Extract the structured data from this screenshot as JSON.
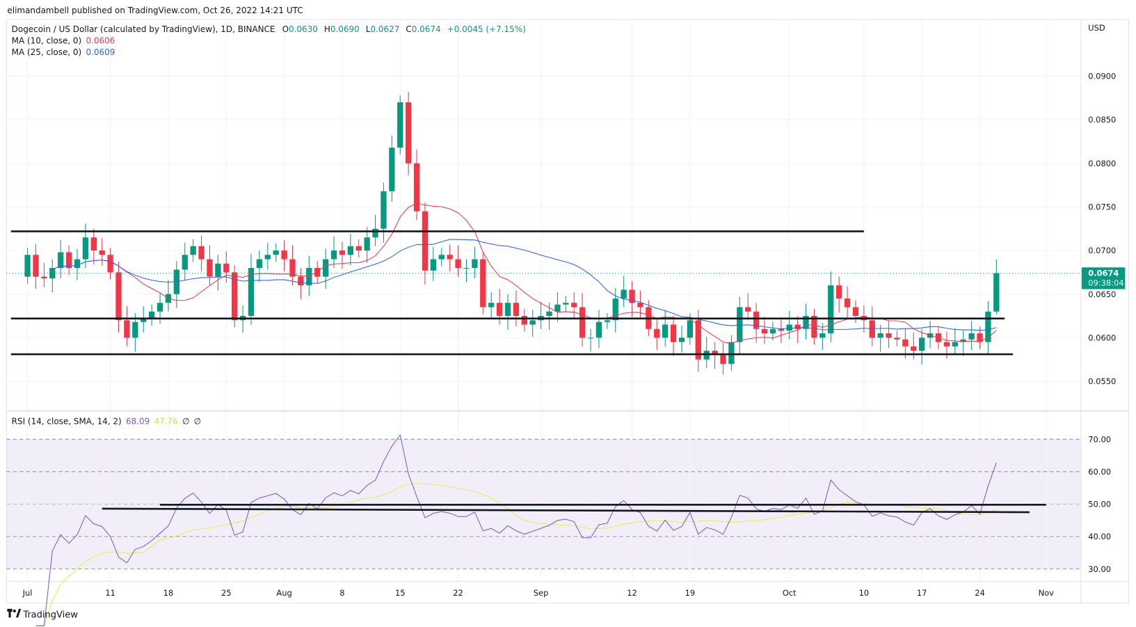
{
  "publisher_line": "elimandambell published on TradingView.com, Oct 26, 2022 14:21 UTC",
  "legend": {
    "symbol": "Dogecoin / US Dollar (calculated by TradingView), 1D, BINANCE",
    "o_label": "O",
    "o": "0.0630",
    "h_label": "H",
    "h": "0.0690",
    "l_label": "L",
    "l": "0.0627",
    "c_label": "C",
    "c": "0.0674",
    "change": "+0.0045 (+7.15%)",
    "ma10_label": "MA (10, close, 0)",
    "ma10_value": "0.0606",
    "ma25_label": "MA (25, close, 0)",
    "ma25_value": "0.0609",
    "rsi_label": "RSI (14, close, SMA, 14, 2)",
    "rsi_value": "68.09",
    "rsi_sma_value": "47.76",
    "rsi_extra1": "∅",
    "rsi_extra2": "∅"
  },
  "currency": "USD",
  "last_price": {
    "price": "0.0674",
    "countdown": "09:38:04",
    "value": 0.0674
  },
  "footer_logo": "TradingView",
  "colors": {
    "up": "#089981",
    "down": "#f23645",
    "ma10": "#f23645",
    "ma25": "#2962ff",
    "rsi": "#7e57c2",
    "rsi_sma": "#e8ec52"
  },
  "chart_data": {
    "type": "candlestick",
    "title": "Dogecoin / US Dollar, 1D, BINANCE",
    "start_date": "2022-07-01",
    "closes": [
      0.0695,
      0.067,
      0.0668,
      0.068,
      0.0698,
      0.068,
      0.069,
      0.0715,
      0.07,
      0.0695,
      0.0675,
      0.062,
      0.06,
      0.0618,
      0.0622,
      0.063,
      0.064,
      0.065,
      0.0678,
      0.0695,
      0.0705,
      0.069,
      0.067,
      0.0685,
      0.0675,
      0.062,
      0.0625,
      0.068,
      0.069,
      0.0695,
      0.07,
      0.069,
      0.067,
      0.066,
      0.068,
      0.067,
      0.069,
      0.07,
      0.0695,
      0.0705,
      0.07,
      0.0715,
      0.0725,
      0.0768,
      0.0818,
      0.087,
      0.08,
      0.0745,
      0.0677,
      0.069,
      0.0695,
      0.069,
      0.068,
      0.068,
      0.069,
      0.0635,
      0.064,
      0.0625,
      0.064,
      0.0625,
      0.0615,
      0.062,
      0.0625,
      0.063,
      0.0638,
      0.064,
      0.0635,
      0.06,
      0.06,
      0.0618,
      0.062,
      0.0645,
      0.0655,
      0.064,
      0.0635,
      0.061,
      0.06,
      0.0615,
      0.0595,
      0.06,
      0.062,
      0.0575,
      0.0585,
      0.058,
      0.057,
      0.0595,
      0.0635,
      0.063,
      0.061,
      0.0605,
      0.061,
      0.0608,
      0.0615,
      0.061,
      0.0625,
      0.06,
      0.0605,
      0.066,
      0.0645,
      0.0635,
      0.0625,
      0.062,
      0.06,
      0.0605,
      0.06,
      0.0598,
      0.059,
      0.0585,
      0.06,
      0.0605,
      0.0595,
      0.059,
      0.0595,
      0.0598,
      0.0605,
      0.0595,
      0.063,
      0.0674
    ],
    "last_candle": {
      "open": 0.063,
      "high": 0.069,
      "low": 0.0627,
      "close": 0.0674
    },
    "price_ticks": [
      "0.0550",
      "0.0600",
      "0.0650",
      "0.0700",
      "0.0750",
      "0.0800",
      "0.0850",
      "0.0900"
    ],
    "rsi_ticks": [
      "30.00",
      "40.00",
      "50.00",
      "60.00",
      "70.00"
    ],
    "rsi_band": [
      30,
      70
    ],
    "x_ticks": [
      {
        "label": "Jul",
        "day": 0
      },
      {
        "label": "11",
        "day": 10
      },
      {
        "label": "18",
        "day": 17
      },
      {
        "label": "25",
        "day": 24
      },
      {
        "label": "Aug",
        "day": 31
      },
      {
        "label": "8",
        "day": 38
      },
      {
        "label": "15",
        "day": 45
      },
      {
        "label": "22",
        "day": 52
      },
      {
        "label": "Sep",
        "day": 62
      },
      {
        "label": "12",
        "day": 73
      },
      {
        "label": "19",
        "day": 80
      },
      {
        "label": "Oct",
        "day": 92
      },
      {
        "label": "10",
        "day": 101
      },
      {
        "label": "17",
        "day": 108
      },
      {
        "label": "24",
        "day": 115
      },
      {
        "label": "Nov",
        "day": 123
      }
    ],
    "drawn_lines": [
      {
        "pane": "price",
        "from_day": -2,
        "to_day": 101,
        "from": 0.0722,
        "to": 0.0722
      },
      {
        "pane": "price",
        "from_day": -2,
        "to_day": 118,
        "from": 0.0622,
        "to": 0.0622
      },
      {
        "pane": "price",
        "from_day": -2,
        "to_day": 119,
        "from": 0.0581,
        "to": 0.0581
      },
      {
        "pane": "rsi",
        "from_day": 16,
        "to_day": 123,
        "from": 49.8,
        "to": 49.8
      },
      {
        "pane": "rsi",
        "from_day": 9,
        "to_day": 121,
        "from": 48.6,
        "to": 47.5
      }
    ]
  }
}
